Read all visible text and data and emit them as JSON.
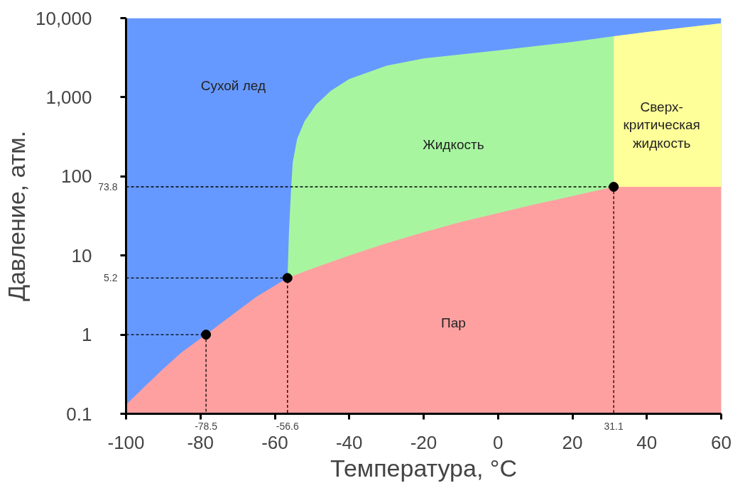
{
  "chart_data": {
    "type": "area",
    "xlabel": "Температура, °C",
    "ylabel": "Давление, атм.",
    "log": "y",
    "xlim": [
      -100,
      60
    ],
    "xticks": [
      -100,
      -80,
      -60,
      -40,
      -20,
      0,
      20,
      40,
      60
    ],
    "ylim": [
      0.1,
      10000
    ],
    "yticks": [
      0.1,
      1,
      10,
      100,
      {
        "value": 1000,
        "label": "1,000"
      },
      {
        "value": 10000,
        "label": "10,000"
      }
    ],
    "series": [
      {
        "color": "#6699ff",
        "x": [
          -100,
          60
        ],
        "values": [
          10000,
          10000
        ]
      },
      {
        "color": "#a8f5a0",
        "x": [
          -56.6,
          -56.2,
          -55.7,
          -55.2,
          -54,
          -52,
          -49,
          -45,
          -40,
          -30,
          -20,
          0,
          20,
          31.1
        ],
        "values": [
          5.2,
          20,
          60,
          150,
          300,
          500,
          800,
          1200,
          1700,
          2500,
          3100,
          3900,
          5000,
          5900
        ]
      },
      {
        "color": "#ffff99",
        "x": [
          31.1,
          40,
          50,
          60
        ],
        "values": [
          5900,
          6700,
          7600,
          8600
        ]
      },
      {
        "color": "#ffa0a0",
        "x": [
          -100,
          -95,
          -90,
          -85,
          -78.5,
          -70,
          -65,
          -56.6,
          -50,
          -40,
          -30,
          -20,
          -10,
          0,
          10,
          20,
          31.1,
          60
        ],
        "values": [
          0.13,
          0.22,
          0.37,
          0.6,
          1,
          2,
          3,
          5.2,
          6.8,
          10,
          14.3,
          19.7,
          26.5,
          34.4,
          44.4,
          56.5,
          73.8,
          73.8
        ]
      },
      {
        "type": "line",
        "color": "#000000",
        "line_style": "dashed",
        "x": [
          -100,
          -78.5,
          -78.5
        ],
        "values": [
          1,
          1,
          0.1
        ]
      },
      {
        "type": "line",
        "color": "#000000",
        "line_style": "dashed",
        "x": [
          -100,
          -56.6,
          -56.6
        ],
        "values": [
          5.2,
          5.2,
          0.1
        ]
      },
      {
        "type": "line",
        "color": "#000000",
        "line_style": "dashed",
        "x": [
          -100,
          31.1,
          31.1
        ],
        "values": [
          73.8,
          73.8,
          0.1
        ]
      },
      {
        "type": "scatter",
        "color": "#000000",
        "marker": "circle",
        "x": [
          -78.5,
          -56.6,
          31.1
        ],
        "values": [
          1,
          5.2,
          73.8
        ]
      }
    ],
    "annotations": [
      "Сухой лед",
      "Жидкость",
      "Пар",
      "Сверх-\nкритическая\nжидкость",
      {
        "text": "-78.5",
        "x": -78.5,
        "y": 0.1
      },
      {
        "text": "-56.6",
        "x": -56.6,
        "y": 0.1
      },
      {
        "text": "31.1",
        "x": 31.1,
        "y": 0.1
      },
      {
        "text": "73.8",
        "x": -100,
        "y": 73.8
      },
      {
        "text": "5.2",
        "x": -100,
        "y": 5.2
      }
    ]
  }
}
